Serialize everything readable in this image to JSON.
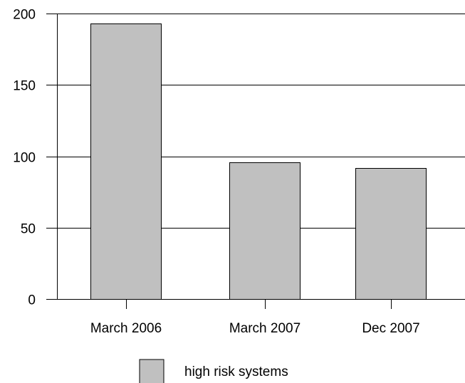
{
  "chart_data": {
    "type": "bar",
    "categories": [
      "March 2006",
      "March 2007",
      "Dec 2007"
    ],
    "series": [
      {
        "name": "high risk systems",
        "values": [
          193,
          96,
          92
        ]
      }
    ],
    "title": "",
    "xlabel": "",
    "ylabel": "",
    "ylim": [
      0,
      200
    ],
    "yticks": [
      0,
      50,
      100,
      150,
      200
    ],
    "grid": true,
    "legend": "bottom-center",
    "colors": {
      "bar_fill": "#c0c0c0",
      "bar_stroke": "#000000",
      "grid": "#000000",
      "axis": "#000000"
    }
  }
}
